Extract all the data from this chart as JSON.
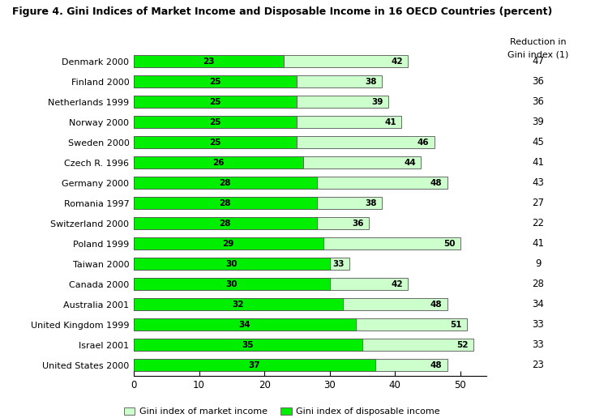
{
  "title": "Figure 4. Gini Indices of Market Income and Disposable Income in 16 OECD Countries (percent)",
  "countries": [
    "Denmark 2000",
    "Finland 2000",
    "Netherlands 1999",
    "Norway 2000",
    "Sweden 2000",
    "Czech R. 1996",
    "Germany 2000",
    "Romania 1997",
    "Switzerland 2000",
    "Poland 1999",
    "Taiwan 2000",
    "Canada 2000",
    "Australia 2001",
    "United Kingdom 1999",
    "Israel 2001",
    "United States 2000"
  ],
  "disposable_income": [
    23,
    25,
    25,
    25,
    25,
    26,
    28,
    28,
    28,
    29,
    30,
    30,
    32,
    34,
    35,
    37
  ],
  "market_income": [
    42,
    38,
    39,
    41,
    46,
    44,
    48,
    38,
    36,
    50,
    33,
    42,
    48,
    51,
    52,
    48
  ],
  "reduction": [
    47,
    36,
    36,
    39,
    45,
    41,
    43,
    27,
    22,
    41,
    9,
    28,
    34,
    33,
    33,
    23
  ],
  "color_disposable": "#00ee00",
  "color_market": "#ccffcc",
  "xlim": [
    0,
    54
  ],
  "xticks": [
    0,
    10,
    20,
    30,
    40,
    50
  ],
  "xlabel_market": "Gini index of market income",
  "xlabel_disposable": "Gini index of disposable income",
  "reduction_label_line1": "Reduction in",
  "reduction_label_line2": "Gini index (1)",
  "bar_height": 0.6
}
